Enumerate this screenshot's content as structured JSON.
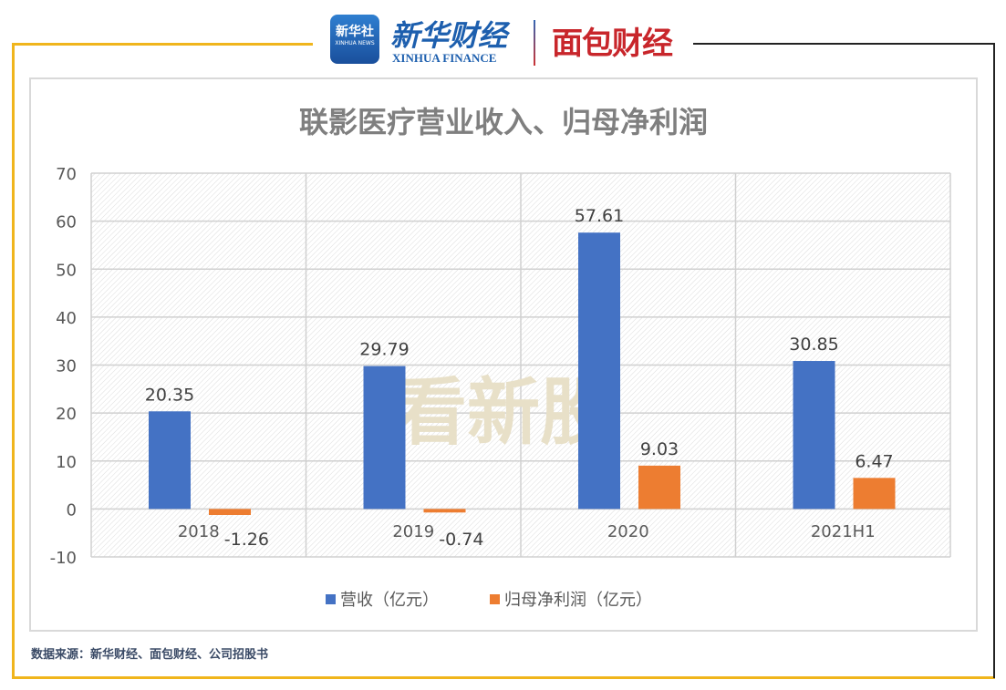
{
  "header": {
    "logo1_cn": "新华社",
    "logo1_en": "XINHUA NEWS",
    "logo2_cn": "新华财经",
    "logo2_en": "XINHUA FINANCE",
    "logo3": "面包财经"
  },
  "watermark": "看新股",
  "source": "数据来源：新华财经、面包财经、公司招股书",
  "colors": {
    "revenue": "#4472c4",
    "profit": "#ed7d31",
    "frame": "#f0b51c"
  },
  "chart_data": {
    "type": "bar",
    "title": "联影医疗营业收入、归母净利润",
    "categories": [
      "2018",
      "2019",
      "2020",
      "2021H1"
    ],
    "series": [
      {
        "name": "营收（亿元）",
        "values": [
          20.35,
          29.79,
          57.61,
          30.85
        ]
      },
      {
        "name": "归母净利润（亿元）",
        "values": [
          -1.26,
          -0.74,
          9.03,
          6.47
        ]
      }
    ],
    "data_labels": [
      [
        "20.35",
        "29.79",
        "57.61",
        "30.85"
      ],
      [
        "-1.26",
        "-0.74",
        "9.03",
        "6.47"
      ]
    ],
    "yticks": [
      "70",
      "60",
      "50",
      "40",
      "30",
      "20",
      "10",
      "0",
      "-10"
    ],
    "ylim": [
      -10,
      70
    ],
    "grid": true,
    "legend": "bottom"
  }
}
